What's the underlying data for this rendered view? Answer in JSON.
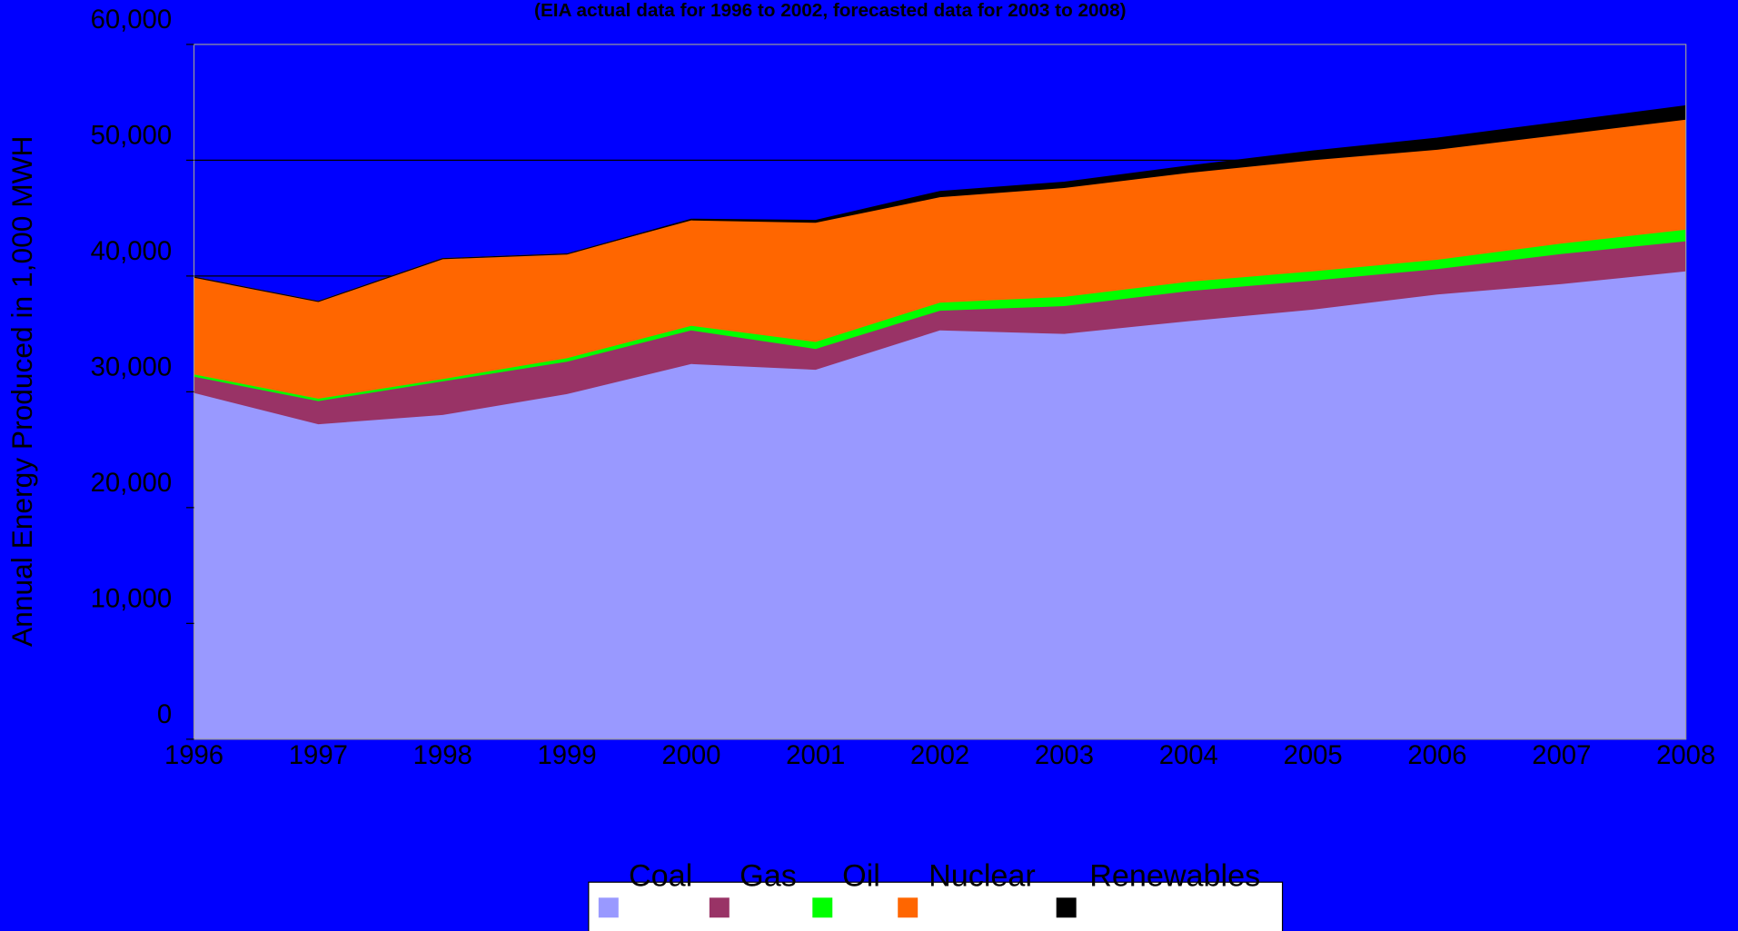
{
  "chart_data": {
    "type": "stacked_area",
    "subtitle": "(EIA actual data for 1996 to 2002, forecasted data for 2003 to 2008)",
    "y_label": "Annual Energy Produced in 1,000 MWH",
    "categories": [
      "1996",
      "1997",
      "1998",
      "1999",
      "2000",
      "2001",
      "2002",
      "2003",
      "2004",
      "2005",
      "2006",
      "2007",
      "2008"
    ],
    "series": [
      {
        "name": "Coal",
        "color": "#9999ff",
        "values": [
          29900,
          27200,
          28000,
          29800,
          32400,
          31900,
          35300,
          35000,
          36100,
          37100,
          38400,
          39300,
          40400
        ]
      },
      {
        "name": "Gas",
        "color": "#993366",
        "values": [
          1400,
          2000,
          2900,
          2800,
          2900,
          1800,
          1700,
          2400,
          2600,
          2500,
          2200,
          2600,
          2600
        ]
      },
      {
        "name": "Oil",
        "color": "#00ff00",
        "values": [
          200,
          200,
          200,
          300,
          400,
          600,
          700,
          800,
          800,
          800,
          800,
          900,
          1000
        ]
      },
      {
        "name": "Nuclear",
        "color": "#ff6600",
        "values": [
          8400,
          8400,
          10400,
          9000,
          9100,
          10300,
          9100,
          9400,
          9400,
          9600,
          9500,
          9400,
          9500
        ]
      },
      {
        "name": "Renewables",
        "color": "#000000",
        "values": [
          0,
          0,
          0,
          0,
          100,
          200,
          500,
          500,
          600,
          800,
          1000,
          1100,
          1200
        ]
      }
    ],
    "ylim": [
      0,
      60000
    ],
    "yticks": [
      0,
      {
        "value": 10000,
        "label": "10,000"
      },
      {
        "value": 20000,
        "label": "20,000"
      },
      {
        "value": 30000,
        "label": "30,000"
      },
      {
        "value": 40000,
        "label": "40,000"
      },
      {
        "value": 50000,
        "label": "50,000"
      },
      {
        "value": 60000,
        "label": "60,000"
      }
    ],
    "grid": true
  }
}
